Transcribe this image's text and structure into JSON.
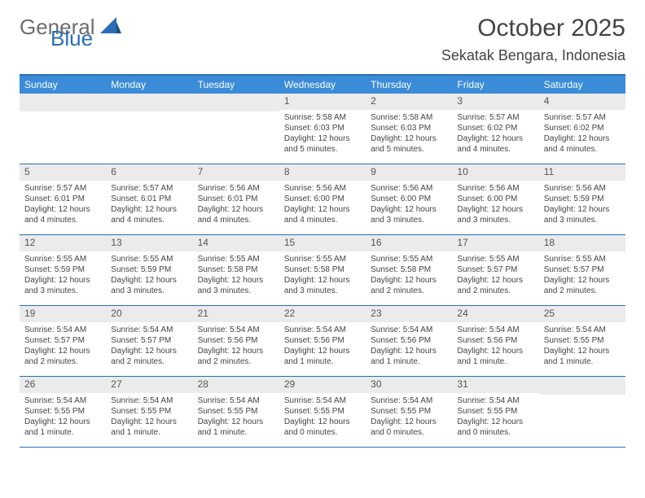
{
  "logo": {
    "text1": "General",
    "text2": "Blue"
  },
  "header": {
    "month_title": "October 2025",
    "location": "Sekatak Bengara, Indonesia"
  },
  "colors": {
    "header_bar": "#3a8bd8",
    "rule": "#2a6fb5",
    "daynum_bg": "#ebebeb",
    "text": "#444444",
    "logo_gray": "#6e6e6e",
    "logo_blue": "#2a6fb5",
    "background": "#ffffff"
  },
  "fonts": {
    "month_title_pt": 30,
    "location_pt": 18,
    "weekday_pt": 12,
    "daynum_pt": 12,
    "body_pt": 10
  },
  "weekdays": [
    "Sunday",
    "Monday",
    "Tuesday",
    "Wednesday",
    "Thursday",
    "Friday",
    "Saturday"
  ],
  "labels": {
    "sunrise": "Sunrise:",
    "sunset": "Sunset:",
    "daylight": "Daylight:"
  },
  "weeks": [
    [
      null,
      null,
      null,
      {
        "n": "1",
        "sunrise": "5:58 AM",
        "sunset": "6:03 PM",
        "daylight": "12 hours and 5 minutes."
      },
      {
        "n": "2",
        "sunrise": "5:58 AM",
        "sunset": "6:03 PM",
        "daylight": "12 hours and 5 minutes."
      },
      {
        "n": "3",
        "sunrise": "5:57 AM",
        "sunset": "6:02 PM",
        "daylight": "12 hours and 4 minutes."
      },
      {
        "n": "4",
        "sunrise": "5:57 AM",
        "sunset": "6:02 PM",
        "daylight": "12 hours and 4 minutes."
      }
    ],
    [
      {
        "n": "5",
        "sunrise": "5:57 AM",
        "sunset": "6:01 PM",
        "daylight": "12 hours and 4 minutes."
      },
      {
        "n": "6",
        "sunrise": "5:57 AM",
        "sunset": "6:01 PM",
        "daylight": "12 hours and 4 minutes."
      },
      {
        "n": "7",
        "sunrise": "5:56 AM",
        "sunset": "6:01 PM",
        "daylight": "12 hours and 4 minutes."
      },
      {
        "n": "8",
        "sunrise": "5:56 AM",
        "sunset": "6:00 PM",
        "daylight": "12 hours and 4 minutes."
      },
      {
        "n": "9",
        "sunrise": "5:56 AM",
        "sunset": "6:00 PM",
        "daylight": "12 hours and 3 minutes."
      },
      {
        "n": "10",
        "sunrise": "5:56 AM",
        "sunset": "6:00 PM",
        "daylight": "12 hours and 3 minutes."
      },
      {
        "n": "11",
        "sunrise": "5:56 AM",
        "sunset": "5:59 PM",
        "daylight": "12 hours and 3 minutes."
      }
    ],
    [
      {
        "n": "12",
        "sunrise": "5:55 AM",
        "sunset": "5:59 PM",
        "daylight": "12 hours and 3 minutes."
      },
      {
        "n": "13",
        "sunrise": "5:55 AM",
        "sunset": "5:59 PM",
        "daylight": "12 hours and 3 minutes."
      },
      {
        "n": "14",
        "sunrise": "5:55 AM",
        "sunset": "5:58 PM",
        "daylight": "12 hours and 3 minutes."
      },
      {
        "n": "15",
        "sunrise": "5:55 AM",
        "sunset": "5:58 PM",
        "daylight": "12 hours and 3 minutes."
      },
      {
        "n": "16",
        "sunrise": "5:55 AM",
        "sunset": "5:58 PM",
        "daylight": "12 hours and 2 minutes."
      },
      {
        "n": "17",
        "sunrise": "5:55 AM",
        "sunset": "5:57 PM",
        "daylight": "12 hours and 2 minutes."
      },
      {
        "n": "18",
        "sunrise": "5:55 AM",
        "sunset": "5:57 PM",
        "daylight": "12 hours and 2 minutes."
      }
    ],
    [
      {
        "n": "19",
        "sunrise": "5:54 AM",
        "sunset": "5:57 PM",
        "daylight": "12 hours and 2 minutes."
      },
      {
        "n": "20",
        "sunrise": "5:54 AM",
        "sunset": "5:57 PM",
        "daylight": "12 hours and 2 minutes."
      },
      {
        "n": "21",
        "sunrise": "5:54 AM",
        "sunset": "5:56 PM",
        "daylight": "12 hours and 2 minutes."
      },
      {
        "n": "22",
        "sunrise": "5:54 AM",
        "sunset": "5:56 PM",
        "daylight": "12 hours and 1 minute."
      },
      {
        "n": "23",
        "sunrise": "5:54 AM",
        "sunset": "5:56 PM",
        "daylight": "12 hours and 1 minute."
      },
      {
        "n": "24",
        "sunrise": "5:54 AM",
        "sunset": "5:56 PM",
        "daylight": "12 hours and 1 minute."
      },
      {
        "n": "25",
        "sunrise": "5:54 AM",
        "sunset": "5:55 PM",
        "daylight": "12 hours and 1 minute."
      }
    ],
    [
      {
        "n": "26",
        "sunrise": "5:54 AM",
        "sunset": "5:55 PM",
        "daylight": "12 hours and 1 minute."
      },
      {
        "n": "27",
        "sunrise": "5:54 AM",
        "sunset": "5:55 PM",
        "daylight": "12 hours and 1 minute."
      },
      {
        "n": "28",
        "sunrise": "5:54 AM",
        "sunset": "5:55 PM",
        "daylight": "12 hours and 1 minute."
      },
      {
        "n": "29",
        "sunrise": "5:54 AM",
        "sunset": "5:55 PM",
        "daylight": "12 hours and 0 minutes."
      },
      {
        "n": "30",
        "sunrise": "5:54 AM",
        "sunset": "5:55 PM",
        "daylight": "12 hours and 0 minutes."
      },
      {
        "n": "31",
        "sunrise": "5:54 AM",
        "sunset": "5:55 PM",
        "daylight": "12 hours and 0 minutes."
      },
      null
    ]
  ]
}
